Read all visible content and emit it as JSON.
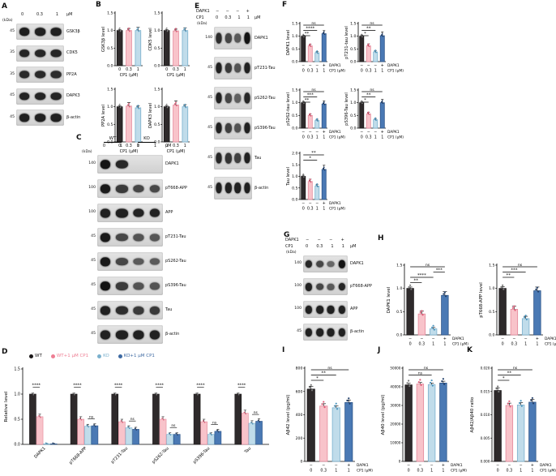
{
  "colors": {
    "black": {
      "fill": "#2e2a2b",
      "stroke": "#1a1718",
      "dot": "#7a7a7a",
      "legend": "#1a1718"
    },
    "pink": {
      "fill": "#f8c3ca",
      "stroke": "#e4889a",
      "dot": "#e05c78",
      "legend": "#ee7e93"
    },
    "lightblue": {
      "fill": "#c0dcea",
      "stroke": "#7ab0cd",
      "dot": "#4e97c0",
      "legend": "#7ab0cd"
    },
    "darkblue": {
      "fill": "#4a79b4",
      "stroke": "#2c5488",
      "dot": "#23406b",
      "legend": "#3d69a2"
    }
  },
  "xrows_cp1": [
    {
      "label": "DAPK1",
      "values": [
        "−",
        "−",
        "−",
        "+"
      ]
    },
    {
      "label": "CP1 (μM)",
      "values": [
        "0",
        "0.3",
        "1",
        "1"
      ]
    }
  ],
  "panel_a": {
    "label": "A",
    "kda": "(kDa)",
    "unit": "μM",
    "lanes": [
      "0",
      "0.3",
      "1"
    ],
    "bands": [
      {
        "kda": "45",
        "name": "GSK3β",
        "intensities": [
          0.92,
          0.9,
          0.9
        ]
      },
      {
        "kda": "35",
        "name": "CDK5",
        "intensities": [
          0.86,
          0.85,
          0.85
        ]
      },
      {
        "kda": "35",
        "name": "PP2A",
        "intensities": [
          0.82,
          0.83,
          0.8
        ]
      },
      {
        "kda": "45",
        "name": "DAPK3",
        "intensities": [
          0.88,
          0.86,
          0.87
        ]
      },
      {
        "kda": "45",
        "name": "β-actin",
        "intensities": [
          0.9,
          0.9,
          0.9
        ]
      }
    ]
  },
  "panel_b": {
    "label": "B",
    "xlabel": "CP1 (μM)",
    "categories": [
      "0",
      "0.3",
      "1"
    ],
    "charts": [
      {
        "ylabel": "GSK3β level",
        "ymax": 1.5,
        "yticks": [
          "0.0",
          "0.5",
          "1.0",
          "1.5"
        ],
        "values": [
          1.0,
          1.0,
          1.0
        ],
        "errors": [
          0.03,
          0.06,
          0.09
        ],
        "colors": [
          "black",
          "pink",
          "lightblue"
        ]
      },
      {
        "ylabel": "CDK5 level",
        "ymax": 1.5,
        "yticks": [
          "0.0",
          "0.5",
          "1.0",
          "1.5"
        ],
        "values": [
          1.0,
          0.99,
          1.0
        ],
        "errors": [
          0.03,
          0.05,
          0.08
        ],
        "colors": [
          "black",
          "pink",
          "lightblue"
        ]
      },
      {
        "ylabel": "PP2A level",
        "ymax": 1.5,
        "yticks": [
          "0.0",
          "0.5",
          "1.0",
          "1.5"
        ],
        "values": [
          1.0,
          1.02,
          0.97
        ],
        "errors": [
          0.03,
          0.1,
          0.05
        ],
        "colors": [
          "black",
          "pink",
          "lightblue"
        ]
      },
      {
        "ylabel": "DAPK3 level",
        "ymax": 1.5,
        "yticks": [
          "0.0",
          "0.5",
          "1.0",
          "1.5"
        ],
        "values": [
          1.0,
          1.05,
          1.0
        ],
        "errors": [
          0.03,
          0.12,
          0.06
        ],
        "colors": [
          "black",
          "pink",
          "lightblue"
        ]
      }
    ]
  },
  "panel_c": {
    "label": "C",
    "kda": "(kDa)",
    "unit": "μM",
    "groups": [
      "WT",
      "KO"
    ],
    "lanes": [
      "0",
      "1",
      "0",
      "1"
    ],
    "bands": [
      {
        "kda": "140",
        "name": "DAPK1",
        "intensities": [
          1.0,
          0.85,
          0.04,
          0.04
        ]
      },
      {
        "kda": "100",
        "name": "pT668-APP",
        "intensities": [
          0.95,
          0.7,
          0.6,
          0.58
        ]
      },
      {
        "kda": "100",
        "name": "APP",
        "intensities": [
          0.9,
          0.9,
          0.88,
          0.88
        ]
      },
      {
        "kda": "45",
        "name": "pT231-Tau",
        "intensities": [
          0.95,
          0.6,
          0.5,
          0.48
        ]
      },
      {
        "kda": "45",
        "name": "pS262-Tau",
        "intensities": [
          0.95,
          0.6,
          0.45,
          0.45
        ]
      },
      {
        "kda": "45",
        "name": "pS396-Tau",
        "intensities": [
          1.0,
          0.7,
          0.5,
          0.5
        ]
      },
      {
        "kda": "45",
        "name": "Tau",
        "intensities": [
          0.9,
          0.8,
          0.7,
          0.7
        ]
      },
      {
        "kda": "45",
        "name": "β-actin",
        "intensities": [
          0.9,
          0.9,
          0.9,
          0.9
        ]
      }
    ]
  },
  "panel_d": {
    "label": "D",
    "ylabel": "Relative level",
    "ymax": 1.5,
    "yticks": [
      "0.0",
      "0.5",
      "1.0",
      "1.5"
    ],
    "legend": [
      {
        "label": "WT",
        "color": "black"
      },
      {
        "label": "WT+1 μM CP1",
        "color": "pink"
      },
      {
        "label": "KO",
        "color": "lightblue"
      },
      {
        "label": "KO+1 μM CP1",
        "color": "darkblue"
      }
    ],
    "categories": [
      "DAPK1",
      "pT668-APP",
      "pT231-Tau",
      "pS262-Tau",
      "pS396-Tau",
      "Tau"
    ],
    "series": [
      {
        "name": "WT",
        "color": "black",
        "values": [
          1.0,
          1.0,
          1.0,
          1.0,
          1.0,
          1.0
        ],
        "errors": [
          0.02,
          0.02,
          0.02,
          0.02,
          0.02,
          0.02
        ]
      },
      {
        "name": "WT+1 μM CP1",
        "color": "pink",
        "values": [
          0.55,
          0.5,
          0.45,
          0.5,
          0.45,
          0.62
        ],
        "errors": [
          0.05,
          0.05,
          0.05,
          0.05,
          0.05,
          0.06
        ]
      },
      {
        "name": "KO",
        "color": "lightblue",
        "values": [
          0.01,
          0.36,
          0.33,
          0.2,
          0.2,
          0.42
        ],
        "errors": [
          0.01,
          0.04,
          0.04,
          0.03,
          0.03,
          0.05
        ]
      },
      {
        "name": "KO+1 μM CP1",
        "color": "darkblue",
        "values": [
          0.01,
          0.37,
          0.3,
          0.2,
          0.26,
          0.46
        ],
        "errors": [
          0.01,
          0.04,
          0.04,
          0.03,
          0.04,
          0.05
        ]
      }
    ],
    "sig": [
      {
        "group": 0,
        "pair": [
          0,
          1
        ],
        "label": "****"
      },
      {
        "group": 1,
        "pair": [
          0,
          1
        ],
        "label": "****"
      },
      {
        "group": 1,
        "pair": [
          2,
          3
        ],
        "label": "ns"
      },
      {
        "group": 2,
        "pair": [
          0,
          1
        ],
        "label": "****"
      },
      {
        "group": 2,
        "pair": [
          2,
          3
        ],
        "label": "ns"
      },
      {
        "group": 3,
        "pair": [
          0,
          1
        ],
        "label": "****"
      },
      {
        "group": 3,
        "pair": [
          2,
          3
        ],
        "label": "ns"
      },
      {
        "group": 4,
        "pair": [
          0,
          1
        ],
        "label": "****"
      },
      {
        "group": 4,
        "pair": [
          2,
          3
        ],
        "label": "ns"
      },
      {
        "group": 5,
        "pair": [
          0,
          1
        ],
        "label": "****"
      },
      {
        "group": 5,
        "pair": [
          2,
          3
        ],
        "label": "ns"
      }
    ]
  },
  "panel_e": {
    "label": "E",
    "kda": "(kDa)",
    "unit": "μM",
    "header_rows": [
      {
        "label": "DAPK1",
        "values": [
          "−",
          "−",
          "−",
          "+"
        ]
      },
      {
        "label": "CP1",
        "values": [
          "0",
          "0.3",
          "1",
          "1"
        ]
      }
    ],
    "bands": [
      {
        "kda": "140",
        "name": "DAPK1",
        "intensities": [
          0.8,
          0.6,
          0.45,
          1.0
        ]
      },
      {
        "kda": "45",
        "name": "pT231-Tau",
        "intensities": [
          0.9,
          0.7,
          0.5,
          0.9
        ]
      },
      {
        "kda": "45",
        "name": "pS262-Tau",
        "intensities": [
          0.9,
          0.6,
          0.4,
          0.85
        ]
      },
      {
        "kda": "45",
        "name": "pS396-Tau",
        "intensities": [
          0.9,
          0.65,
          0.5,
          0.9
        ]
      },
      {
        "kda": "45",
        "name": "Tau",
        "intensities": [
          0.85,
          0.75,
          0.65,
          0.9
        ]
      },
      {
        "kda": "45",
        "name": "β-actin",
        "intensities": [
          0.9,
          0.9,
          0.9,
          0.9
        ]
      }
    ]
  },
  "panel_f": {
    "label": "F",
    "charts": [
      {
        "ylabel": "DAPK1 level",
        "ymax": 1.5,
        "yticks": [
          "0.0",
          "0.5",
          "1.0",
          "1.5"
        ],
        "values": [
          1.0,
          0.62,
          0.35,
          1.1
        ],
        "errors": [
          0.04,
          0.07,
          0.05,
          0.12
        ],
        "colors": [
          "black",
          "pink",
          "lightblue",
          "darkblue"
        ],
        "xrows": "cp1",
        "sig": [
          {
            "f": 0,
            "t": 3,
            "s": "ns"
          },
          {
            "f": 0,
            "t": 2,
            "s": "****"
          },
          {
            "f": 0,
            "t": 1,
            "s": "**"
          }
        ]
      },
      {
        "ylabel": "pT231-tau level",
        "ymax": 1.5,
        "yticks": [
          "0.0",
          "0.5",
          "1.0",
          "1.5"
        ],
        "values": [
          1.0,
          0.62,
          0.38,
          1.02
        ],
        "errors": [
          0.05,
          0.08,
          0.06,
          0.15
        ],
        "colors": [
          "black",
          "pink",
          "lightblue",
          "darkblue"
        ],
        "xrows": "cp1",
        "sig": [
          {
            "f": 0,
            "t": 3,
            "s": "ns"
          },
          {
            "f": 0,
            "t": 2,
            "s": "**"
          },
          {
            "f": 0,
            "t": 1,
            "s": "*"
          }
        ]
      },
      {
        "ylabel": "pS262-tau level",
        "ymax": 1.5,
        "yticks": [
          "0.0",
          "0.5",
          "1.0",
          "1.5"
        ],
        "values": [
          1.0,
          0.5,
          0.3,
          0.95
        ],
        "errors": [
          0.05,
          0.06,
          0.05,
          0.12
        ],
        "colors": [
          "black",
          "pink",
          "lightblue",
          "darkblue"
        ],
        "xrows": "cp1",
        "sig": [
          {
            "f": 0,
            "t": 3,
            "s": "ns"
          },
          {
            "f": 0,
            "t": 2,
            "s": "***"
          },
          {
            "f": 0,
            "t": 1,
            "s": "**"
          }
        ]
      },
      {
        "ylabel": "pS396-Tau level",
        "ymax": 1.5,
        "yticks": [
          "0.0",
          "0.5",
          "1.0",
          "1.5"
        ],
        "values": [
          1.0,
          0.56,
          0.33,
          1.0
        ],
        "errors": [
          0.05,
          0.07,
          0.05,
          0.13
        ],
        "colors": [
          "black",
          "pink",
          "lightblue",
          "darkblue"
        ],
        "xrows": "cp1",
        "sig": [
          {
            "f": 0,
            "t": 3,
            "s": "ns"
          },
          {
            "f": 0,
            "t": 2,
            "s": "**"
          },
          {
            "f": 0,
            "t": 1,
            "s": "*"
          }
        ]
      },
      {
        "ylabel": "Tau level",
        "ymax": 2.0,
        "yticks": [
          "0.0",
          "0.5",
          "1.0",
          "1.5",
          "2.0"
        ],
        "values": [
          1.0,
          0.78,
          0.58,
          1.3
        ],
        "errors": [
          0.05,
          0.1,
          0.08,
          0.18
        ],
        "colors": [
          "black",
          "pink",
          "lightblue",
          "darkblue"
        ],
        "xrows": "cp1",
        "sig": [
          {
            "f": 0,
            "t": 3,
            "s": "**"
          },
          {
            "f": 0,
            "t": 2,
            "s": "*"
          }
        ]
      }
    ]
  },
  "panel_g": {
    "label": "G",
    "kda": "(kDa)",
    "unit": "μM",
    "header_rows": [
      {
        "label": "DAPK1",
        "values": [
          "−",
          "−",
          "−",
          "+"
        ]
      },
      {
        "label": "CP1",
        "values": [
          "0",
          "0.3",
          "1",
          "1"
        ]
      }
    ],
    "bands": [
      {
        "kda": "140",
        "name": "DAPK1",
        "intensities": [
          0.85,
          0.6,
          0.35,
          1.0
        ]
      },
      {
        "kda": "100",
        "name": "pT668-APP",
        "intensities": [
          0.9,
          0.6,
          0.45,
          0.85
        ]
      },
      {
        "kda": "100",
        "name": "APP",
        "intensities": [
          0.9,
          0.9,
          0.9,
          0.9
        ]
      },
      {
        "kda": "45",
        "name": "β-actin",
        "intensities": [
          0.9,
          0.9,
          0.9,
          0.9
        ]
      }
    ]
  },
  "panel_h": {
    "label": "H",
    "charts": [
      {
        "ylabel": "DAPK1 level",
        "ymax": 1.5,
        "yticks": [
          "0.0",
          "0.5",
          "1.0",
          "1.5"
        ],
        "values": [
          1.0,
          0.45,
          0.13,
          0.85
        ],
        "errors": [
          0.03,
          0.06,
          0.03,
          0.08
        ],
        "colors": [
          "black",
          "pink",
          "lightblue",
          "darkblue"
        ],
        "xrows": "cp1",
        "sig": [
          {
            "f": 0,
            "t": 3,
            "s": "ns"
          },
          {
            "f": 2,
            "t": 3,
            "s": "***"
          },
          {
            "f": 0,
            "t": 2,
            "s": "****"
          },
          {
            "f": 0,
            "t": 1,
            "s": "**"
          }
        ]
      },
      {
        "ylabel": "pT668-APP level",
        "ymax": 1.5,
        "yticks": [
          "0.0",
          "0.5",
          "1.0",
          "1.5"
        ],
        "values": [
          1.0,
          0.55,
          0.35,
          0.95
        ],
        "errors": [
          0.04,
          0.07,
          0.05,
          0.08
        ],
        "colors": [
          "black",
          "pink",
          "lightblue",
          "darkblue"
        ],
        "xrows": "cp1",
        "sig": [
          {
            "f": 0,
            "t": 3,
            "s": "ns"
          },
          {
            "f": 0,
            "t": 2,
            "s": "***"
          },
          {
            "f": 0,
            "t": 1,
            "s": "**"
          }
        ]
      }
    ]
  },
  "panel_i": {
    "label": "I",
    "chart": {
      "ylabel": "Aβ42 level (pg/ml)",
      "ymax": 800,
      "yticks": [
        "0",
        "200",
        "400",
        "600",
        "800"
      ],
      "values": [
        620,
        475,
        460,
        505
      ],
      "errors": [
        25,
        20,
        18,
        22
      ],
      "colors": [
        "black",
        "pink",
        "lightblue",
        "darkblue"
      ],
      "xrows": "cp1",
      "sig": [
        {
          "f": 0,
          "t": 3,
          "s": "ns"
        },
        {
          "f": 0,
          "t": 2,
          "s": "**"
        },
        {
          "f": 0,
          "t": 1,
          "s": "*"
        }
      ]
    }
  },
  "panel_j": {
    "label": "J",
    "chart": {
      "ylabel": "Aβ40 level (pg/ml)",
      "ymax": 50000,
      "yticks": [
        "0",
        "10000",
        "20000",
        "30000",
        "40000",
        "50000"
      ],
      "values": [
        41000,
        41500,
        41200,
        42000
      ],
      "errors": [
        900,
        800,
        800,
        1000
      ],
      "colors": [
        "black",
        "pink",
        "lightblue",
        "darkblue"
      ],
      "xrows": "cp1",
      "sig": [
        {
          "f": 0,
          "t": 3,
          "s": "ns"
        },
        {
          "f": 0,
          "t": 2,
          "s": "ns"
        }
      ]
    }
  },
  "panel_k": {
    "label": "K",
    "chart": {
      "ylabel": "Aβ42/Aβ40 ratio",
      "ymax": 0.02,
      "yticks": [
        "0.000",
        "0.005",
        "0.010",
        "0.015",
        "0.020"
      ],
      "values": [
        0.0152,
        0.012,
        0.0121,
        0.0127
      ],
      "errors": [
        0.0006,
        0.0005,
        0.0005,
        0.0006
      ],
      "colors": [
        "black",
        "pink",
        "lightblue",
        "darkblue"
      ],
      "xrows": "cp1",
      "sig": [
        {
          "f": 0,
          "t": 3,
          "s": "ns"
        },
        {
          "f": 0,
          "t": 2,
          "s": "**"
        },
        {
          "f": 0,
          "t": 1,
          "s": "*"
        }
      ]
    }
  }
}
